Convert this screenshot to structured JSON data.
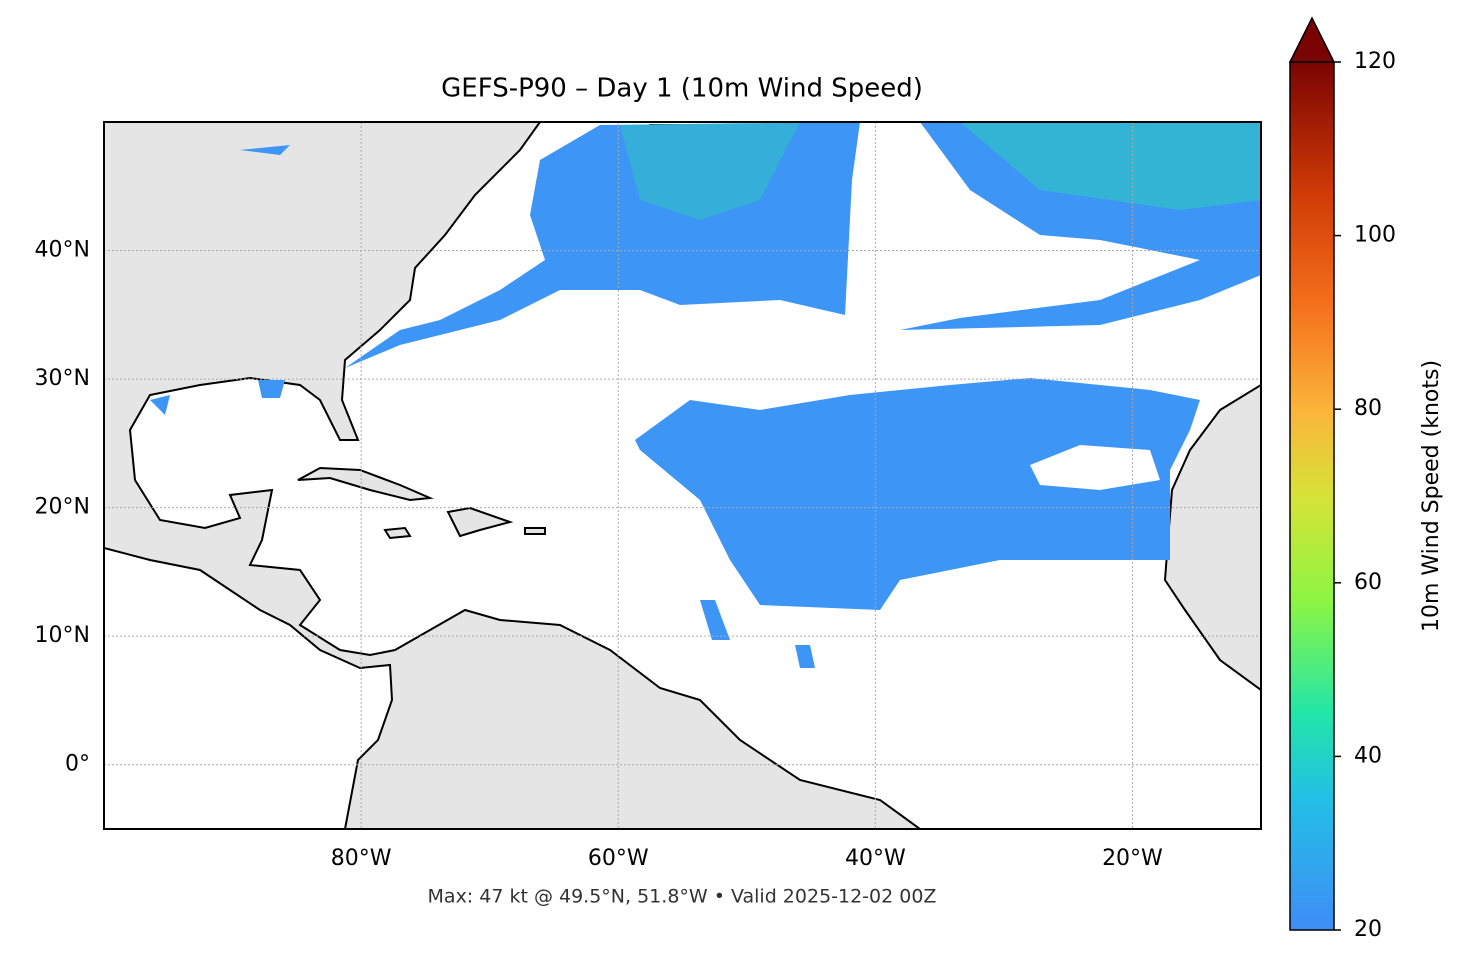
{
  "chart_data": {
    "type": "map",
    "title": "GEFS-P90 – Day 1 (10m Wind Speed)",
    "xlim": [
      -100,
      -10
    ],
    "ylim": [
      -5,
      50
    ],
    "xticks": [
      {
        "value": -80,
        "label": "80°W"
      },
      {
        "value": -60,
        "label": "60°W"
      },
      {
        "value": -40,
        "label": "40°W"
      },
      {
        "value": -20,
        "label": "20°W"
      }
    ],
    "yticks": [
      {
        "value": 0,
        "label": "0°"
      },
      {
        "value": 10,
        "label": "10°N"
      },
      {
        "value": 20,
        "label": "20°N"
      },
      {
        "value": 30,
        "label": "30°N"
      },
      {
        "value": 40,
        "label": "40°N"
      }
    ],
    "grid": true,
    "colorbar": {
      "label": "10m Wind Speed (knots)",
      "lim": [
        20,
        120
      ],
      "ticks": [
        20,
        40,
        60,
        80,
        100,
        120
      ],
      "extend": "max"
    },
    "footnote": "Max: 47 kt @ 49.5°N, 51.8°W • Valid 2025-12-02 00Z"
  }
}
